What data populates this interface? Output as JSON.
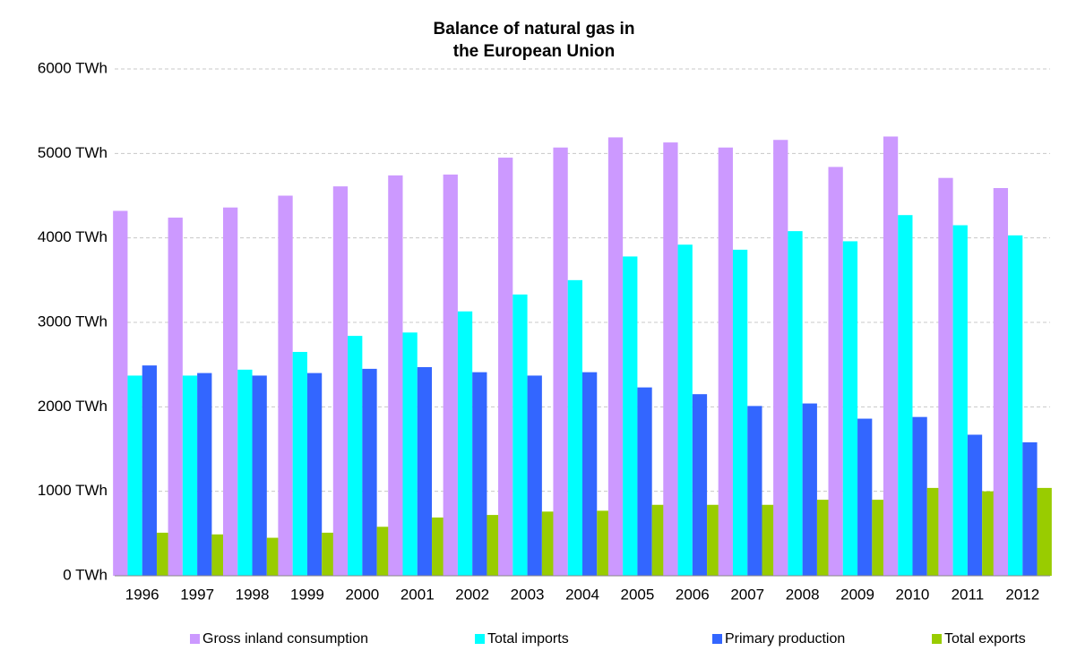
{
  "chart_data": {
    "type": "bar",
    "title": [
      "Balance of natural gas in",
      "the European Union"
    ],
    "categories": [
      "1996",
      "1997",
      "1998",
      "1999",
      "2000",
      "2001",
      "2002",
      "2003",
      "2004",
      "2005",
      "2006",
      "2007",
      "2008",
      "2009",
      "2010",
      "2011",
      "2012"
    ],
    "series": [
      {
        "name": "Gross inland consumption",
        "color": "#cc99ff",
        "values": [
          4320,
          4240,
          4360,
          4500,
          4610,
          4740,
          4750,
          4950,
          5070,
          5190,
          5130,
          5070,
          5160,
          4840,
          5200,
          4710,
          4590
        ]
      },
      {
        "name": "Total imports",
        "color": "#00ffff",
        "values": [
          2370,
          2370,
          2440,
          2650,
          2840,
          2880,
          3130,
          3330,
          3500,
          3780,
          3920,
          3860,
          4080,
          3960,
          4270,
          4150,
          4030
        ]
      },
      {
        "name": "Primary production",
        "color": "#3366ff",
        "values": [
          2490,
          2400,
          2370,
          2400,
          2450,
          2470,
          2410,
          2370,
          2410,
          2230,
          2150,
          2010,
          2040,
          1860,
          1880,
          1670,
          1580
        ]
      },
      {
        "name": "Total exports",
        "color": "#99cc00",
        "values": [
          510,
          490,
          450,
          510,
          580,
          690,
          720,
          760,
          770,
          840,
          840,
          840,
          900,
          900,
          1040,
          1000,
          1040
        ]
      }
    ],
    "ylim": [
      0,
      6000
    ],
    "yticks": [
      {
        "value": 0,
        "label": "0 TWh"
      },
      {
        "value": 1000,
        "label": "1000 TWh"
      },
      {
        "value": 2000,
        "label": "2000 TWh"
      },
      {
        "value": 3000,
        "label": "3000 TWh"
      },
      {
        "value": 4000,
        "label": "4000 TWh"
      },
      {
        "value": 5000,
        "label": "5000 TWh"
      },
      {
        "value": 6000,
        "label": "6000 TWh"
      }
    ],
    "grid": true,
    "legend": "bottom"
  }
}
